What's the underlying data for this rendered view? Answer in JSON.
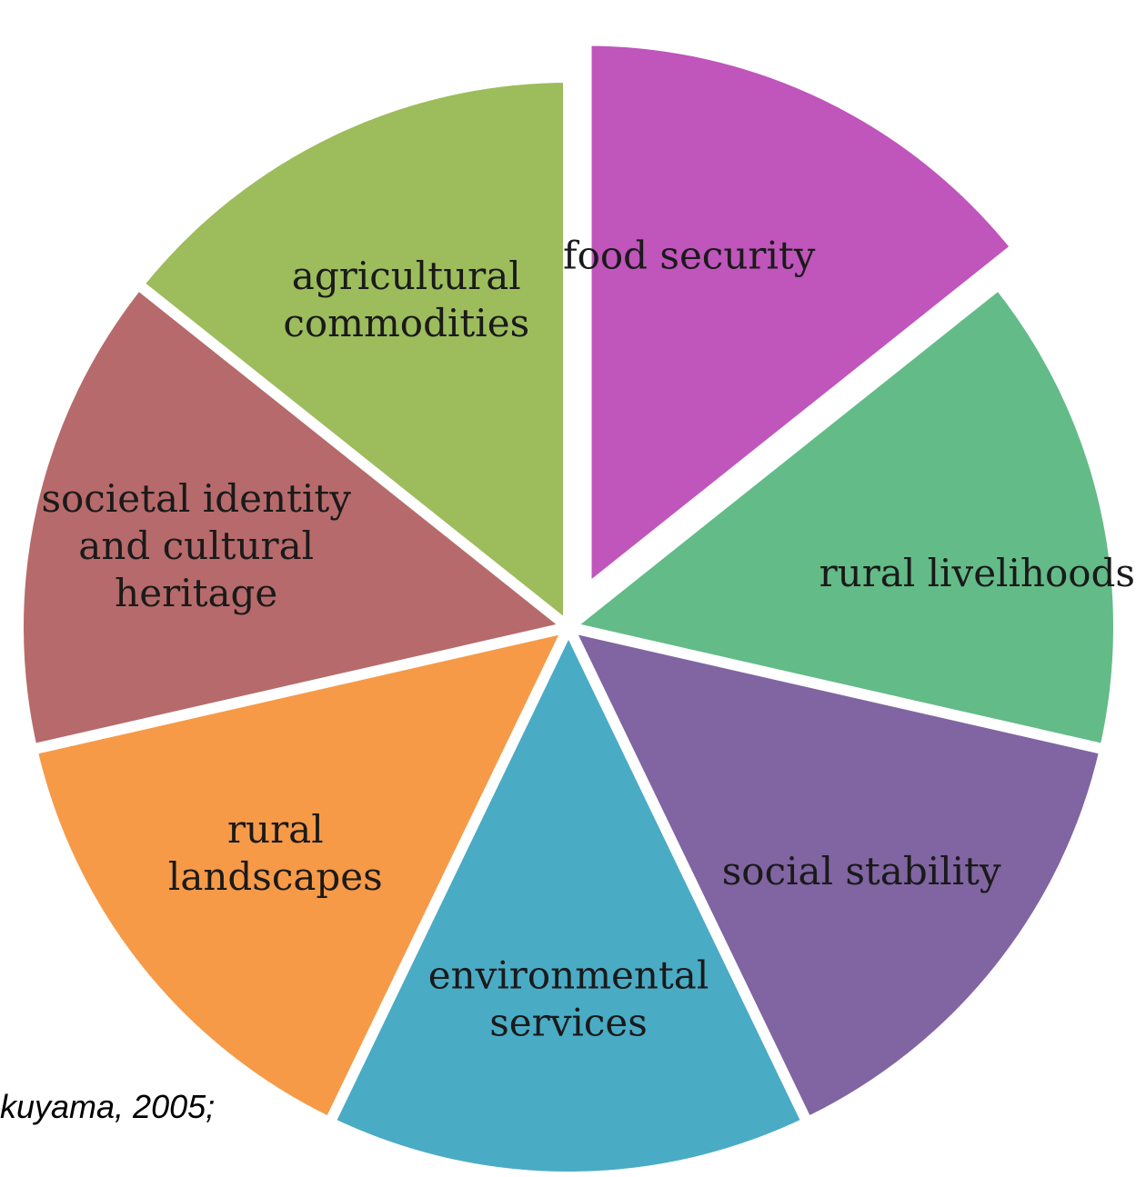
{
  "chart_data": {
    "type": "pie",
    "title": "",
    "slices": [
      {
        "label": [
          "food security"
        ],
        "value": 1,
        "color": "#c055bc",
        "exploded": true
      },
      {
        "label": [
          "rural livelihoods"
        ],
        "value": 1,
        "color": "#63bb88"
      },
      {
        "label": [
          "social stability"
        ],
        "value": 1,
        "color": "#8065a2"
      },
      {
        "label": [
          "environmental",
          "services"
        ],
        "value": 1,
        "color": "#4aabc5"
      },
      {
        "label": [
          "rural",
          "landscapes"
        ],
        "value": 1,
        "color": "#f69a48"
      },
      {
        "label": [
          "societal identity",
          "and cultural",
          "heritage"
        ],
        "value": 1,
        "color": "#b76a6b"
      },
      {
        "label": [
          "agricultural",
          "commodities"
        ],
        "value": 1,
        "color": "#9dbc5c"
      }
    ]
  },
  "caption": "kuyama, 2005;"
}
